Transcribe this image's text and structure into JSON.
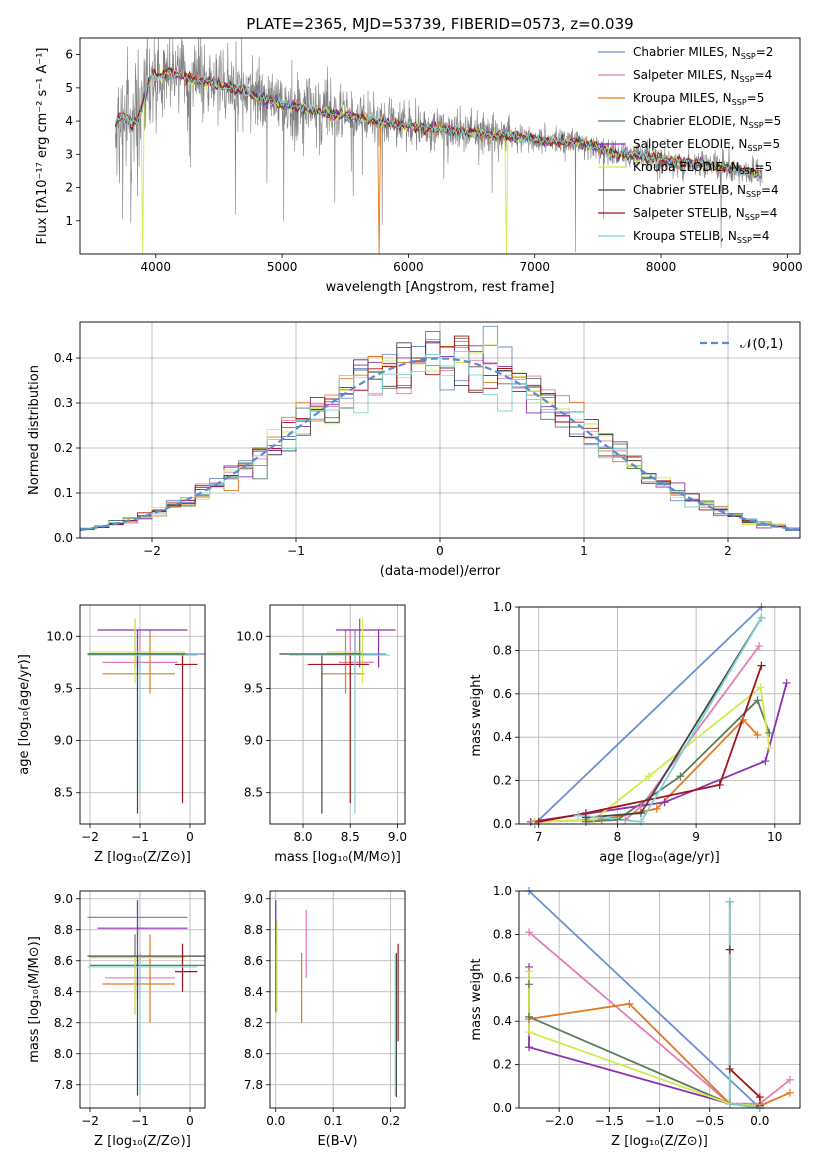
{
  "title": "PLATE=2365, MJD=53739, FIBERID=0573, z=0.039",
  "colors": {
    "Chabrier MILES": "#6a8fd4",
    "Salpeter MILES": "#e67bb5",
    "Kroupa MILES": "#e07b1f",
    "Chabrier ELODIE": "#5a7d5e",
    "Salpeter ELODIE": "#8e2fb0",
    "Kroupa ELODIE": "#d2ea4a",
    "Chabrier STELIB": "#444444",
    "Salpeter STELIB": "#a01616",
    "Kroupa STELIB": "#7dd4d4",
    "data": "#808080"
  },
  "chart_data": [
    {
      "type": "line",
      "panel": "spectrum",
      "xlabel": "wavelength [Angstrom, rest frame]",
      "ylabel": "Flux [fλ10⁻¹⁷ erg cm⁻² s⁻¹ A⁻¹]",
      "xlim": [
        3400,
        9100
      ],
      "ylim": [
        0,
        6.5
      ],
      "xticks": [
        4000,
        5000,
        6000,
        7000,
        8000,
        9000
      ],
      "yticks": [
        1,
        2,
        3,
        4,
        5,
        6
      ],
      "legend": "top-right",
      "series": [
        {
          "name": "Chabrier MILES, N_SSP=2"
        },
        {
          "name": "Salpeter MILES, N_SSP=4"
        },
        {
          "name": "Kroupa MILES, N_SSP=5"
        },
        {
          "name": "Chabrier ELODIE, N_SSP=5"
        },
        {
          "name": "Salpeter ELODIE, N_SSP=5"
        },
        {
          "name": "Kroupa ELODIE, N_SSP=5"
        },
        {
          "name": "Chabrier STELIB, N_SSP=4"
        },
        {
          "name": "Salpeter STELIB, N_SSP=4"
        },
        {
          "name": "Kroupa STELIB, N_SSP=4"
        }
      ],
      "continuum": {
        "x": [
          3680,
          3900,
          4000,
          4100,
          4300,
          4500,
          4700,
          4900,
          5100,
          5300,
          5600,
          6000,
          6500,
          7000,
          7400,
          7600,
          8000,
          8500,
          8800
        ],
        "y": [
          3.7,
          4.5,
          5.3,
          5.5,
          5.25,
          5.1,
          4.9,
          4.6,
          4.45,
          4.3,
          4.1,
          3.85,
          3.65,
          3.45,
          3.35,
          3.05,
          2.85,
          2.6,
          2.4
        ]
      },
      "model_dips": [
        {
          "x": 5770,
          "series": 2
        },
        {
          "x": 6780,
          "series": 5
        },
        {
          "x": 3900,
          "series": 5
        }
      ]
    },
    {
      "type": "histogram",
      "panel": "residuals",
      "xlabel": "(data-model)/error",
      "ylabel": "Normed distribution",
      "xlim": [
        -2.5,
        2.5
      ],
      "ylim": [
        0,
        0.48
      ],
      "xticks": [
        -2,
        -1,
        0,
        1,
        2
      ],
      "yticks": [
        0.0,
        0.1,
        0.2,
        0.3,
        0.4
      ],
      "grid": true,
      "legend": "top-right",
      "reference_curve": "𝒩(0,1)",
      "bin_width": 0.1
    },
    {
      "type": "errorbar",
      "panel": "age-vs-Z",
      "xlabel": "Z [log₁₀(Z/Z⊙)]",
      "ylabel": "age  [log₁₀(age/yr)]",
      "xlim": [
        -2.2,
        0.3
      ],
      "ylim": [
        8.2,
        10.3
      ],
      "xticks": [
        -2,
        -1,
        0
      ],
      "yticks": [
        8.5,
        9.0,
        9.5,
        10.0
      ],
      "grid": true,
      "points": [
        {
          "s": 0,
          "x": -1.05,
          "xlo": -2.05,
          "xhi": 0.3,
          "y": 9.83,
          "ylo": 9.58,
          "yhi": 10.06
        },
        {
          "s": 1,
          "x": -1.0,
          "xlo": -1.75,
          "xhi": -0.25,
          "y": 9.75,
          "ylo": 9.6,
          "yhi": 10.06
        },
        {
          "s": 2,
          "x": -0.8,
          "xlo": -1.75,
          "xhi": -0.3,
          "y": 9.64,
          "ylo": 9.45,
          "yhi": 10.06
        },
        {
          "s": 3,
          "x": -1.1,
          "xlo": -2.0,
          "xhi": -0.05,
          "y": 9.83,
          "ylo": 9.7,
          "yhi": 10.17
        },
        {
          "s": 4,
          "x": -1.05,
          "xlo": -1.85,
          "xhi": -0.05,
          "y": 10.06,
          "ylo": 9.7,
          "yhi": 10.06
        },
        {
          "s": 5,
          "x": -1.1,
          "xlo": -2.0,
          "xhi": -0.1,
          "y": 9.85,
          "ylo": 9.55,
          "yhi": 10.17
        },
        {
          "s": 6,
          "x": -1.05,
          "xlo": -2.05,
          "xhi": -0.1,
          "y": 9.83,
          "ylo": 8.3,
          "yhi": 9.83
        },
        {
          "s": 7,
          "x": -0.15,
          "xlo": -0.3,
          "xhi": 0.15,
          "y": 9.73,
          "ylo": 8.4,
          "yhi": 9.83
        },
        {
          "s": 8,
          "x": -1.0,
          "xlo": -2.05,
          "xhi": 0.15,
          "y": 9.82,
          "ylo": 8.5,
          "yhi": 9.83
        }
      ]
    },
    {
      "type": "errorbar",
      "panel": "age-vs-mass",
      "xlabel": "mass [log₁₀(M/M⊙)]",
      "ylabel": "",
      "xlim": [
        7.65,
        9.08
      ],
      "ylim": [
        8.2,
        10.3
      ],
      "xticks": [
        8.0,
        8.5,
        9.0
      ],
      "yticks": [
        8.5,
        9.0,
        9.5,
        10.0
      ],
      "grid": true,
      "points": [
        {
          "s": 0,
          "x": 8.55,
          "xlo": 8.3,
          "xhi": 8.88,
          "y": 9.83,
          "ylo": 9.65,
          "yhi": 10.06
        },
        {
          "s": 1,
          "x": 8.5,
          "xlo": 8.38,
          "xhi": 8.75,
          "y": 9.75,
          "ylo": 9.6,
          "yhi": 10.06
        },
        {
          "s": 2,
          "x": 8.45,
          "xlo": 8.2,
          "xhi": 8.65,
          "y": 9.64,
          "ylo": 9.45,
          "yhi": 10.06
        },
        {
          "s": 3,
          "x": 8.6,
          "xlo": 8.25,
          "xhi": 8.65,
          "y": 9.83,
          "ylo": 9.7,
          "yhi": 10.17
        },
        {
          "s": 4,
          "x": 8.8,
          "xlo": 8.35,
          "xhi": 8.98,
          "y": 10.06,
          "ylo": 9.7,
          "yhi": 10.06
        },
        {
          "s": 5,
          "x": 8.63,
          "xlo": 8.25,
          "xhi": 8.63,
          "y": 9.85,
          "ylo": 9.55,
          "yhi": 10.17
        },
        {
          "s": 6,
          "x": 8.2,
          "xlo": 7.75,
          "xhi": 8.6,
          "y": 9.83,
          "ylo": 8.3,
          "yhi": 9.83
        },
        {
          "s": 7,
          "x": 8.5,
          "xlo": 8.05,
          "xhi": 8.7,
          "y": 9.73,
          "ylo": 8.4,
          "yhi": 9.83
        },
        {
          "s": 8,
          "x": 8.55,
          "xlo": 7.85,
          "xhi": 8.92,
          "y": 9.82,
          "ylo": 8.3,
          "yhi": 9.83
        }
      ]
    },
    {
      "type": "line",
      "panel": "mass-weight-vs-age",
      "xlabel": "age  [log₁₀(age/yr)]",
      "ylabel": "mass weight",
      "xlim": [
        6.75,
        10.32
      ],
      "ylim": [
        0,
        1.0
      ],
      "xticks": [
        7,
        8,
        9,
        10
      ],
      "yticks": [
        0.0,
        0.2,
        0.4,
        0.6,
        0.8,
        1.0
      ],
      "grid": true,
      "series": [
        {
          "s": 0,
          "x": [
            6.95,
            9.83
          ],
          "y": [
            0.0,
            1.0
          ]
        },
        {
          "s": 1,
          "x": [
            7.6,
            8.1,
            8.3,
            9.8
          ],
          "y": [
            0.02,
            0.02,
            0.08,
            0.82
          ]
        },
        {
          "s": 2,
          "x": [
            6.95,
            7.8,
            8.5,
            9.6,
            9.78
          ],
          "y": [
            0.01,
            0.02,
            0.07,
            0.48,
            0.41
          ]
        },
        {
          "s": 3,
          "x": [
            7.6,
            8.0,
            8.8,
            9.78,
            9.93
          ],
          "y": [
            0.01,
            0.02,
            0.22,
            0.57,
            0.42
          ]
        },
        {
          "s": 4,
          "x": [
            6.9,
            8.6,
            9.88,
            10.15
          ],
          "y": [
            0.01,
            0.1,
            0.29,
            0.65
          ]
        },
        {
          "s": 5,
          "x": [
            6.95,
            7.7,
            8.4,
            9.82,
            9.93
          ],
          "y": [
            0.01,
            0.02,
            0.22,
            0.63,
            0.35
          ]
        },
        {
          "s": 6,
          "x": [
            7.6,
            8.3,
            9.83
          ],
          "y": [
            0.03,
            0.05,
            0.95
          ]
        },
        {
          "s": 7,
          "x": [
            7.0,
            7.6,
            9.3,
            9.83
          ],
          "y": [
            0.01,
            0.05,
            0.18,
            0.73
          ]
        },
        {
          "s": 8,
          "x": [
            7.5,
            8.3,
            9.83
          ],
          "y": [
            0.04,
            0.01,
            0.95
          ]
        }
      ]
    },
    {
      "type": "errorbar",
      "panel": "mass-vs-Z",
      "xlabel": "Z [log₁₀(Z/Z⊙)]",
      "ylabel": "mass [log₁₀(M/M⊙)]",
      "xlim": [
        -2.2,
        0.3
      ],
      "ylim": [
        7.65,
        9.05
      ],
      "xticks": [
        -2,
        -1,
        0
      ],
      "yticks": [
        7.8,
        8.0,
        8.2,
        8.4,
        8.6,
        8.8,
        9.0
      ],
      "grid": true,
      "points": [
        {
          "s": 0,
          "x": -1.05,
          "xlo": -2.05,
          "xhi": -0.05,
          "y": 8.88,
          "ylo": 8.7,
          "yhi": 8.99
        },
        {
          "s": 1,
          "x": -1.0,
          "xlo": -1.7,
          "xhi": -0.3,
          "y": 8.49,
          "ylo": 8.4,
          "yhi": 8.65
        },
        {
          "s": 2,
          "x": -0.8,
          "xlo": -1.75,
          "xhi": -0.3,
          "y": 8.45,
          "ylo": 8.2,
          "yhi": 8.77
        },
        {
          "s": 3,
          "x": -1.1,
          "xlo": -2.0,
          "xhi": 0.3,
          "y": 8.57,
          "ylo": 8.26,
          "yhi": 8.77
        },
        {
          "s": 4,
          "x": -1.05,
          "xlo": -1.85,
          "xhi": -0.05,
          "y": 8.81,
          "ylo": 8.35,
          "yhi": 8.99
        },
        {
          "s": 5,
          "x": -1.1,
          "xlo": -2.0,
          "xhi": -0.1,
          "y": 8.62,
          "ylo": 8.25,
          "yhi": 8.63
        },
        {
          "s": 6,
          "x": -1.05,
          "xlo": -2.05,
          "xhi": 0.3,
          "y": 8.63,
          "ylo": 7.73,
          "yhi": 8.63
        },
        {
          "s": 7,
          "x": -0.15,
          "xlo": -0.3,
          "xhi": 0.15,
          "y": 8.53,
          "ylo": 8.4,
          "yhi": 8.71
        },
        {
          "s": 8,
          "x": -1.0,
          "xlo": -2.05,
          "xhi": 0.15,
          "y": 8.56,
          "ylo": 7.75,
          "yhi": 8.63
        }
      ]
    },
    {
      "type": "errorbar",
      "panel": "mass-vs-EBV",
      "xlabel": "E(B-V)",
      "ylabel": "",
      "xlim": [
        -0.01,
        0.225
      ],
      "ylim": [
        7.65,
        9.05
      ],
      "xticks": [
        0.0,
        0.1,
        0.2
      ],
      "yticks": [
        7.8,
        8.0,
        8.2,
        8.4,
        8.6,
        8.8,
        9.0
      ],
      "grid": true,
      "points": [
        {
          "s": 0,
          "x": 0.0,
          "y": 8.88,
          "ylo": 8.7,
          "yhi": 8.99
        },
        {
          "s": 1,
          "x": 0.053,
          "y": 8.7,
          "ylo": 8.49,
          "yhi": 8.93
        },
        {
          "s": 2,
          "x": 0.045,
          "y": 8.45,
          "ylo": 8.2,
          "yhi": 8.65
        },
        {
          "s": 3,
          "x": 0.0,
          "y": 8.6,
          "ylo": 8.27,
          "yhi": 8.86
        },
        {
          "s": 4,
          "x": 0.0,
          "y": 8.9,
          "ylo": 8.8,
          "yhi": 8.99
        },
        {
          "s": 5,
          "x": 0.002,
          "y": 8.62,
          "ylo": 8.26,
          "yhi": 8.86
        },
        {
          "s": 6,
          "x": 0.21,
          "y": 8.2,
          "ylo": 7.72,
          "yhi": 8.65
        },
        {
          "s": 7,
          "x": 0.213,
          "y": 8.4,
          "ylo": 8.08,
          "yhi": 8.71
        },
        {
          "s": 8,
          "x": 0.208,
          "y": 8.1,
          "ylo": 7.73,
          "yhi": 8.64
        }
      ]
    },
    {
      "type": "line",
      "panel": "mass-weight-vs-Z",
      "xlabel": "Z [log₁₀(Z/Z⊙)]",
      "ylabel": "mass weight",
      "xlim": [
        -2.4,
        0.4
      ],
      "ylim": [
        0,
        1.0
      ],
      "xticks": [
        -2.0,
        -1.5,
        -1.0,
        -0.5,
        0.0
      ],
      "yticks": [
        0.0,
        0.2,
        0.4,
        0.6,
        0.8,
        1.0
      ],
      "grid": true,
      "series": [
        {
          "s": 0,
          "x": [
            -2.3,
            0.0
          ],
          "y": [
            1.0,
            0.0
          ]
        },
        {
          "s": 1,
          "x": [
            -2.3,
            -0.3,
            0.0,
            0.3
          ],
          "y": [
            0.81,
            0.02,
            0.02,
            0.13
          ]
        },
        {
          "s": 2,
          "x": [
            -2.3,
            -1.3,
            -0.3,
            0.0,
            0.3
          ],
          "y": [
            0.41,
            0.48,
            0.02,
            0.01,
            0.07
          ]
        },
        {
          "s": 3,
          "x": [
            -2.3,
            -2.3,
            -0.3,
            0.0
          ],
          "y": [
            0.57,
            0.42,
            0.02,
            0.01
          ]
        },
        {
          "s": 4,
          "x": [
            -2.3,
            -2.3,
            -0.3,
            0.0
          ],
          "y": [
            0.65,
            0.28,
            0.02,
            0.01
          ]
        },
        {
          "s": 5,
          "x": [
            -2.3,
            -2.3,
            -0.3,
            0.0
          ],
          "y": [
            0.63,
            0.35,
            0.02,
            0.01
          ]
        },
        {
          "s": 6,
          "x": [
            -0.3,
            -0.3,
            0.0
          ],
          "y": [
            0.95,
            0.02,
            0.0
          ]
        },
        {
          "s": 7,
          "x": [
            -0.3,
            -0.3,
            0.0,
            0.0
          ],
          "y": [
            0.73,
            0.18,
            0.05,
            0.01
          ]
        },
        {
          "s": 8,
          "x": [
            -0.3,
            -0.3,
            0.0
          ],
          "y": [
            0.95,
            0.02,
            0.0
          ]
        }
      ]
    }
  ]
}
